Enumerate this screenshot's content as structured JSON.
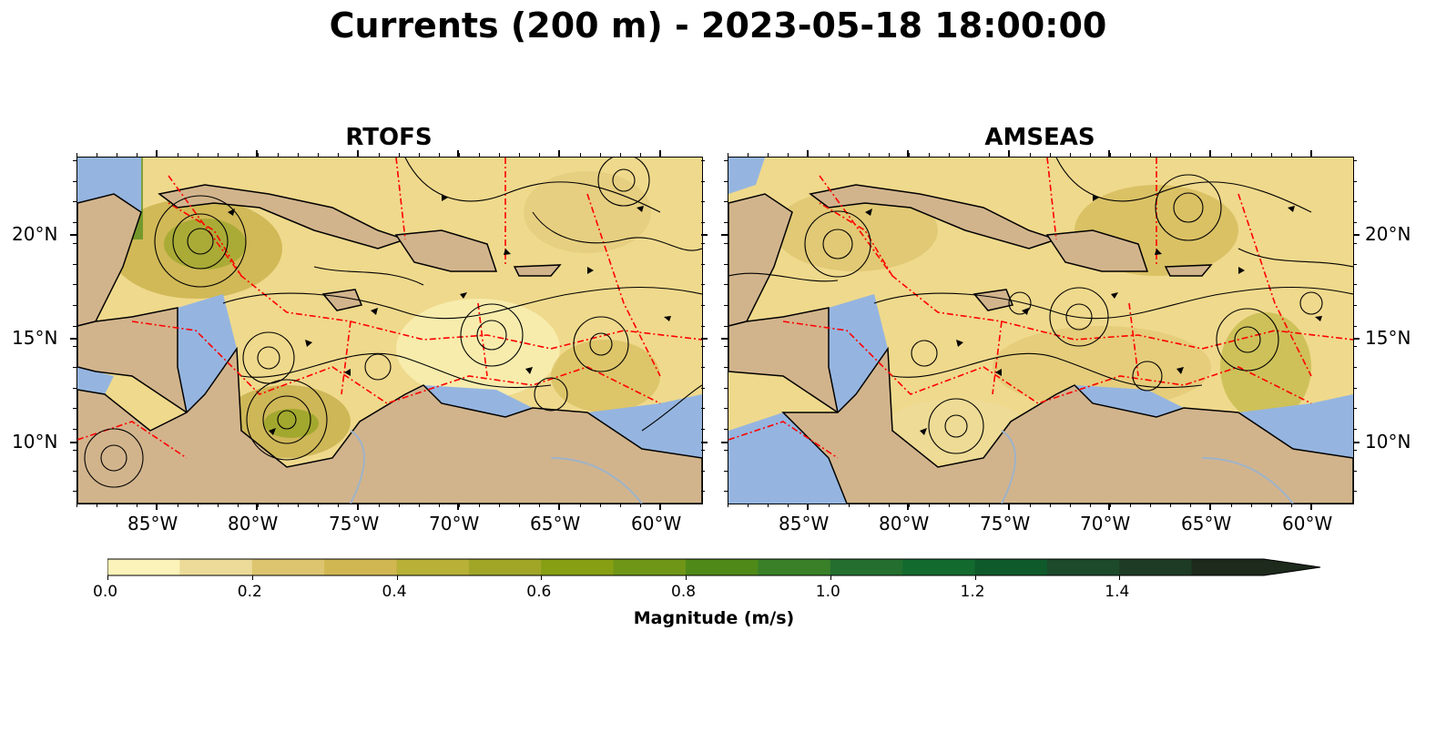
{
  "title": "Currents (200 m) - 2023-05-18 18:00:00",
  "panels": [
    {
      "name": "RTOFS"
    },
    {
      "name": "AMSEAS"
    }
  ],
  "lon_ticks": [
    "85°W",
    "80°W",
    "75°W",
    "70°W",
    "65°W",
    "60°W"
  ],
  "lat_ticks": [
    "20°N",
    "15°N",
    "10°N"
  ],
  "colorbar": {
    "label": "Magnitude (m/s)",
    "tick_labels": [
      "0.0",
      "0.2",
      "0.4",
      "0.6",
      "0.8",
      "1.0",
      "1.2",
      "1.4"
    ],
    "range": [
      0,
      1.6
    ],
    "extend": "max",
    "colors": [
      "#fbf3b9",
      "#ecdb98",
      "#ddc46f",
      "#d1b752",
      "#b7b137",
      "#a1a627",
      "#869f13",
      "#6f9617",
      "#4f8a19",
      "#3a8028",
      "#246f2f",
      "#136a2f",
      "#0f5a2a",
      "#1c4a2b",
      "#1e3b25",
      "#1d2a1c"
    ]
  },
  "colors": {
    "land": "#d2b48c",
    "water": "#95b5e0",
    "boundary": "#ff0000"
  }
}
